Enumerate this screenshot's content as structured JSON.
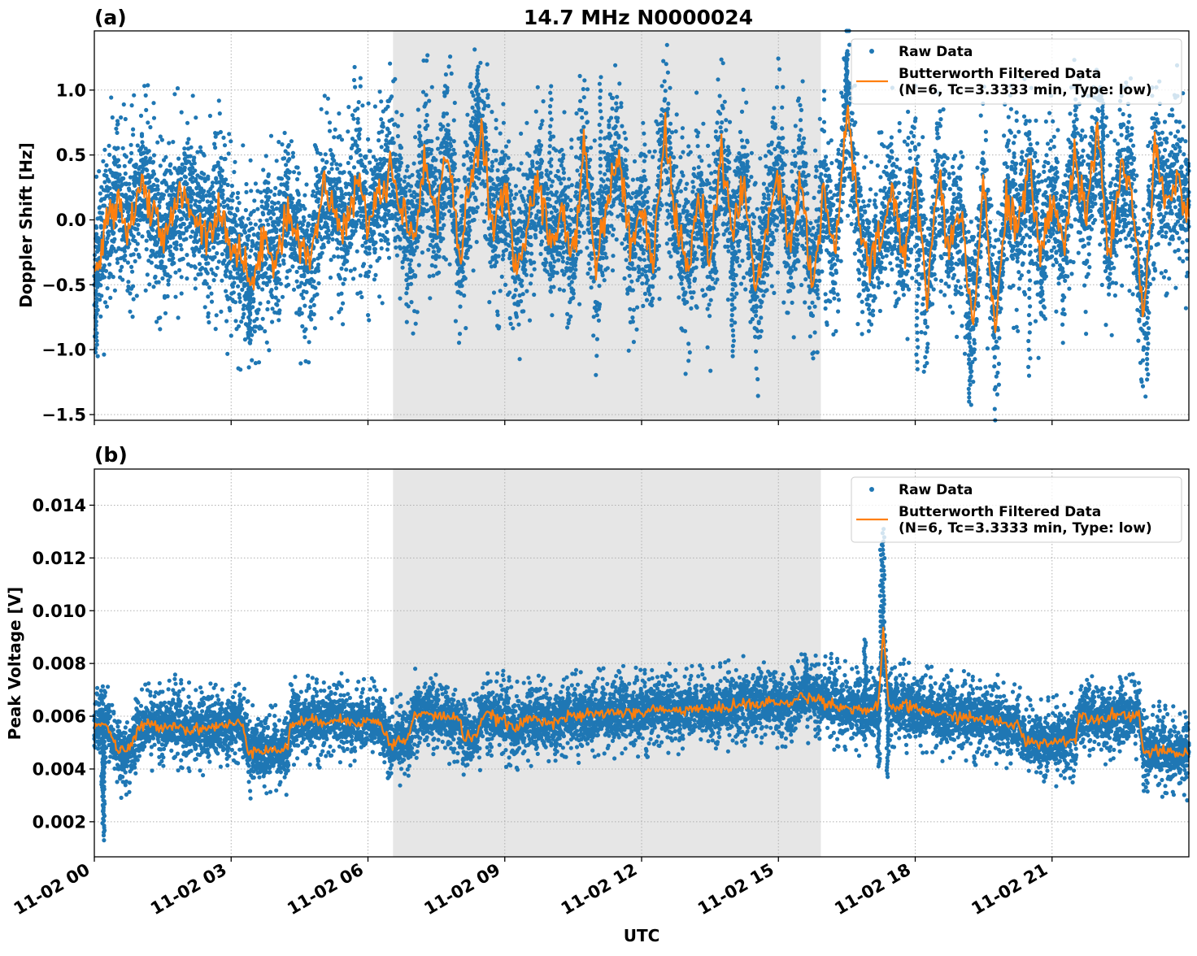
{
  "chart_data": [
    {
      "type": "scatter+line",
      "panel_label": "(a)",
      "title": "14.7 MHz N0000024",
      "xlabel": "",
      "ylabel": "Doppler Shift [Hz]",
      "xlim_hours": [
        0,
        24
      ],
      "ylim": [
        -1.544,
        1.456
      ],
      "yticks": [
        1.0,
        0.5,
        0.0,
        -0.5,
        -1.0,
        -1.5
      ],
      "ytick_labels": [
        "1.0",
        "0.5",
        "0.0",
        "−0.5",
        "−1.0",
        "−1.5"
      ],
      "grid": true,
      "shaded_region_hours": [
        6.55,
        15.93
      ],
      "legend": {
        "position": "upper right",
        "entries": [
          {
            "label": "Raw Data",
            "marker": "dot",
            "color": "#1f77b4"
          },
          {
            "label": "Butterworth Filtered Data\n(N=6, Tc=3.3333 min, Type: low)",
            "marker": "line",
            "color": "#ff7f0e"
          }
        ]
      },
      "series": [
        {
          "name": "Butterworth Filtered Data",
          "color": "#ff7f0e",
          "x_hours": [
            0,
            0.25,
            0.5,
            0.75,
            1.0,
            1.25,
            1.5,
            1.75,
            2.0,
            2.25,
            2.5,
            2.75,
            3.0,
            3.25,
            3.5,
            3.75,
            4.0,
            4.25,
            4.5,
            4.75,
            5.0,
            5.25,
            5.5,
            5.75,
            6.0,
            6.25,
            6.5,
            6.75,
            7.0,
            7.25,
            7.5,
            7.75,
            8.0,
            8.25,
            8.5,
            8.75,
            9.0,
            9.25,
            9.5,
            9.75,
            10.0,
            10.25,
            10.5,
            10.75,
            11.0,
            11.25,
            11.5,
            11.75,
            12.0,
            12.25,
            12.5,
            12.75,
            13.0,
            13.25,
            13.5,
            13.75,
            14.0,
            14.25,
            14.5,
            14.75,
            15.0,
            15.25,
            15.5,
            15.75,
            16.0,
            16.25,
            16.5,
            16.75,
            17.0,
            17.25,
            17.5,
            17.75,
            18.0,
            18.25,
            18.5,
            18.75,
            19.0,
            19.25,
            19.5,
            19.75,
            20.0,
            20.25,
            20.5,
            20.75,
            21.0,
            21.25,
            21.5,
            21.75,
            22.0,
            22.25,
            22.5,
            22.75,
            23.0,
            23.25,
            23.5,
            23.75,
            24.0
          ],
          "y": [
            -0.4,
            -0.1,
            0.2,
            -0.1,
            0.3,
            0.1,
            -0.2,
            0.1,
            0.2,
            0.0,
            -0.1,
            0.1,
            -0.2,
            -0.3,
            -0.5,
            -0.1,
            -0.3,
            0.1,
            -0.2,
            -0.3,
            0.2,
            0.1,
            -0.1,
            0.3,
            0.0,
            0.2,
            0.4,
            0.1,
            -0.2,
            0.5,
            0.0,
            0.6,
            -0.3,
            0.3,
            0.7,
            -0.1,
            0.2,
            -0.4,
            0.0,
            0.3,
            -0.2,
            0.1,
            -0.3,
            0.6,
            -0.4,
            0.2,
            0.5,
            -0.2,
            0.1,
            -0.3,
            0.7,
            0.0,
            -0.4,
            0.2,
            -0.3,
            0.5,
            -0.1,
            0.3,
            -0.6,
            0.0,
            0.4,
            -0.2,
            0.3,
            -0.5,
            0.2,
            -0.3,
            0.9,
            0.0,
            -0.4,
            -0.1,
            0.2,
            -0.3,
            0.4,
            -0.6,
            0.3,
            -0.2,
            0.1,
            -0.8,
            0.3,
            -0.9,
            0.2,
            -0.1,
            0.4,
            -0.3,
            0.2,
            -0.2,
            0.5,
            0.0,
            0.7,
            -0.3,
            0.4,
            0.2,
            -0.8,
            0.5,
            0.1,
            0.3,
            0.1
          ]
        },
        {
          "name": "Raw Data",
          "color": "#1f77b4",
          "envelope_note": "Raw points spread approx ±0.45 Hz around the filtered curve, with spikes to −1.4 Hz (~19.2 h) and +1.3 Hz (~16.5 h)",
          "spread": 0.45
        }
      ]
    },
    {
      "type": "scatter+line",
      "panel_label": "(b)",
      "title": "",
      "xlabel": "UTC",
      "ylabel": "Peak Voltage [V]",
      "xlim_hours": [
        0,
        24
      ],
      "ylim": [
        0.00067,
        0.01537
      ],
      "yticks": [
        0.014,
        0.012,
        0.01,
        0.008,
        0.006,
        0.004,
        0.002
      ],
      "ytick_labels": [
        "0.014",
        "0.012",
        "0.010",
        "0.008",
        "0.006",
        "0.004",
        "0.002"
      ],
      "xticks_hours": [
        0,
        3,
        6,
        9,
        12,
        15,
        18,
        21
      ],
      "xtick_labels": [
        "11-02 00",
        "11-02 03",
        "11-02 06",
        "11-02 09",
        "11-02 12",
        "11-02 15",
        "11-02 18",
        "11-02 21"
      ],
      "grid": true,
      "shaded_region_hours": [
        6.55,
        15.93
      ],
      "legend": {
        "position": "upper right",
        "entries": [
          {
            "label": "Raw Data",
            "marker": "dot",
            "color": "#1f77b4"
          },
          {
            "label": "Butterworth Filtered Data\n(N=6, Tc=3.3333 min, Type: low)",
            "marker": "line",
            "color": "#ff7f0e"
          }
        ]
      },
      "series": [
        {
          "name": "Butterworth Filtered Data",
          "color": "#ff7f0e",
          "x_hours": [
            0,
            0.1,
            0.25,
            0.4,
            0.5,
            0.75,
            1.0,
            1.25,
            1.5,
            1.75,
            2.0,
            2.25,
            2.5,
            2.75,
            3.0,
            3.25,
            3.4,
            3.5,
            3.75,
            4.0,
            4.25,
            4.3,
            4.5,
            4.75,
            5.0,
            5.25,
            5.5,
            5.75,
            6.0,
            6.25,
            6.5,
            6.6,
            6.9,
            7.0,
            7.25,
            7.5,
            7.75,
            8.0,
            8.1,
            8.4,
            8.5,
            8.75,
            9.0,
            9.25,
            9.5,
            9.75,
            10.0,
            10.25,
            10.5,
            10.75,
            11.0,
            11.25,
            11.5,
            11.75,
            12.0,
            12.25,
            12.5,
            12.75,
            13.0,
            13.25,
            13.5,
            13.75,
            14.0,
            14.25,
            14.5,
            14.75,
            15.0,
            15.25,
            15.5,
            15.75,
            16.0,
            16.25,
            16.5,
            16.75,
            17.0,
            17.2,
            17.3,
            17.4,
            17.5,
            17.75,
            18.0,
            18.25,
            18.5,
            18.75,
            19.0,
            19.25,
            19.5,
            19.75,
            20.0,
            20.25,
            20.4,
            20.5,
            20.75,
            21.0,
            21.25,
            21.5,
            21.6,
            21.75,
            22.0,
            22.25,
            22.5,
            22.75,
            22.9,
            23.0,
            23.25,
            23.5,
            23.75,
            24.0
          ],
          "y": [
            0.0055,
            0.0058,
            0.0057,
            0.0052,
            0.0047,
            0.0047,
            0.0056,
            0.0057,
            0.0056,
            0.0057,
            0.0055,
            0.0055,
            0.0056,
            0.0056,
            0.0057,
            0.0057,
            0.0046,
            0.0048,
            0.0047,
            0.0047,
            0.0048,
            0.0057,
            0.0058,
            0.0058,
            0.0058,
            0.0059,
            0.0058,
            0.0058,
            0.0058,
            0.0058,
            0.0049,
            0.005,
            0.0052,
            0.006,
            0.0061,
            0.006,
            0.006,
            0.0059,
            0.0052,
            0.0053,
            0.006,
            0.006,
            0.0058,
            0.0055,
            0.0059,
            0.0059,
            0.0058,
            0.0059,
            0.006,
            0.006,
            0.0061,
            0.0061,
            0.0062,
            0.0061,
            0.0061,
            0.0063,
            0.0062,
            0.0062,
            0.0063,
            0.0063,
            0.0062,
            0.0063,
            0.0064,
            0.0065,
            0.0064,
            0.0065,
            0.0066,
            0.0064,
            0.0068,
            0.0067,
            0.0066,
            0.0064,
            0.0063,
            0.0063,
            0.0062,
            0.0064,
            0.0093,
            0.0066,
            0.0063,
            0.0064,
            0.0063,
            0.0062,
            0.0061,
            0.006,
            0.006,
            0.0059,
            0.0059,
            0.0058,
            0.0057,
            0.0057,
            0.005,
            0.0051,
            0.005,
            0.005,
            0.0051,
            0.0051,
            0.006,
            0.006,
            0.0059,
            0.006,
            0.0061,
            0.006,
            0.0062,
            0.0046,
            0.0047,
            0.0046,
            0.0046,
            0.0046
          ]
        },
        {
          "name": "Raw Data",
          "color": "#1f77b4",
          "envelope_note": "Raw points spread approx ±0.0009 V around the filtered curve; spike to ~0.0131 V near 17.3 h; outliers down to ~0.0013 V near 0.2 h",
          "spread": 0.0009
        }
      ]
    }
  ],
  "figure": {
    "title": "14.7 MHz N0000024",
    "shared_xlabel": "UTC",
    "colors": {
      "raw": "#1f77b4",
      "filtered": "#ff7f0e",
      "shade": "#e6e6e6",
      "grid": "#b0b0b0"
    }
  }
}
